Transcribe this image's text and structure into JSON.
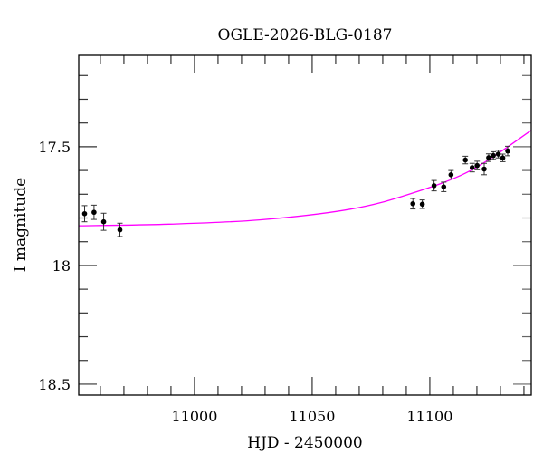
{
  "chart_data": {
    "type": "scatter",
    "title": "OGLE-2026-BLG-0187",
    "xlabel": "HJD - 2450000",
    "ylabel": "I magnitude",
    "xlim": [
      10950.8,
      11143.1
    ],
    "ylim": [
      18.546,
      17.115
    ],
    "y_inverted": true,
    "x_ticks": [
      {
        "value": 11000,
        "label": "11000"
      },
      {
        "value": 11050,
        "label": "11050"
      },
      {
        "value": 11100,
        "label": "11100"
      }
    ],
    "y_ticks": [
      {
        "value": 17.5,
        "label": "17.5"
      },
      {
        "value": 18,
        "label": "18"
      },
      {
        "value": 18.5,
        "label": "18.5"
      }
    ],
    "x_minor_step": 10,
    "y_minor_step": 0.1,
    "grid": false,
    "colors": {
      "points": "#000000",
      "model": "#ff00ff",
      "axes": "#000000"
    },
    "points": [
      {
        "x": 10953.3,
        "y": 17.782,
        "err": 0.034
      },
      {
        "x": 10957.3,
        "y": 17.776,
        "err": 0.03
      },
      {
        "x": 10961.4,
        "y": 17.816,
        "err": 0.036
      },
      {
        "x": 10968.3,
        "y": 17.85,
        "err": 0.028
      },
      {
        "x": 11092.8,
        "y": 17.74,
        "err": 0.022
      },
      {
        "x": 11096.8,
        "y": 17.742,
        "err": 0.018
      },
      {
        "x": 11101.8,
        "y": 17.664,
        "err": 0.022
      },
      {
        "x": 11105.9,
        "y": 17.669,
        "err": 0.02
      },
      {
        "x": 11109.0,
        "y": 17.618,
        "err": 0.018
      },
      {
        "x": 11115.1,
        "y": 17.556,
        "err": 0.016
      },
      {
        "x": 11118.0,
        "y": 17.588,
        "err": 0.018
      },
      {
        "x": 11120.1,
        "y": 17.579,
        "err": 0.018
      },
      {
        "x": 11123.1,
        "y": 17.594,
        "err": 0.024
      },
      {
        "x": 11125.0,
        "y": 17.546,
        "err": 0.016
      },
      {
        "x": 11127.0,
        "y": 17.537,
        "err": 0.016
      },
      {
        "x": 11129.1,
        "y": 17.531,
        "err": 0.016
      },
      {
        "x": 11131.0,
        "y": 17.547,
        "err": 0.016
      },
      {
        "x": 11133.1,
        "y": 17.518,
        "err": 0.02
      }
    ],
    "model": [
      {
        "x": 10950.8,
        "y": 17.833
      },
      {
        "x": 10989.2,
        "y": 17.826
      },
      {
        "x": 11027.7,
        "y": 17.808
      },
      {
        "x": 11066.2,
        "y": 17.763
      },
      {
        "x": 11091.8,
        "y": 17.698
      },
      {
        "x": 11117.4,
        "y": 17.6
      },
      {
        "x": 11143.1,
        "y": 17.431
      }
    ]
  }
}
